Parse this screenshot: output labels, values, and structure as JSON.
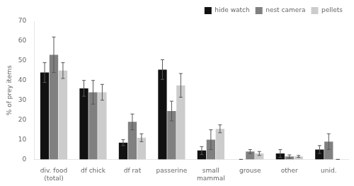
{
  "chart_data": {
    "type": "bar",
    "categories": [
      "div. food\n(total)",
      "df chick",
      "df rat",
      "passerine",
      "small\nmammal",
      "grouse",
      "other",
      "unid."
    ],
    "series": [
      {
        "name": "hide watch",
        "color": "#111111",
        "values": [
          44,
          36,
          8.5,
          45.5,
          4.5,
          0,
          3,
          5
        ],
        "errors": [
          5,
          4,
          1.5,
          5,
          2,
          0,
          2,
          2
        ]
      },
      {
        "name": "nest camera",
        "color": "#808080",
        "values": [
          53,
          34,
          19,
          24.5,
          10,
          4,
          1.5,
          9
        ],
        "errors": [
          9,
          6,
          4,
          5,
          5,
          1,
          0.8,
          4
        ]
      },
      {
        "name": "pellets",
        "color": "#cccccc",
        "values": [
          45,
          34,
          11,
          37.5,
          15.5,
          3,
          1.5,
          0
        ],
        "errors": [
          4,
          4,
          2,
          6,
          2,
          1,
          0.5,
          0
        ]
      }
    ],
    "ylabel": "% of prey items",
    "ylim": [
      0,
      70
    ],
    "yticks": [
      0,
      10,
      20,
      30,
      40,
      50,
      60,
      70
    ],
    "legend": "upper right",
    "grid": false
  }
}
